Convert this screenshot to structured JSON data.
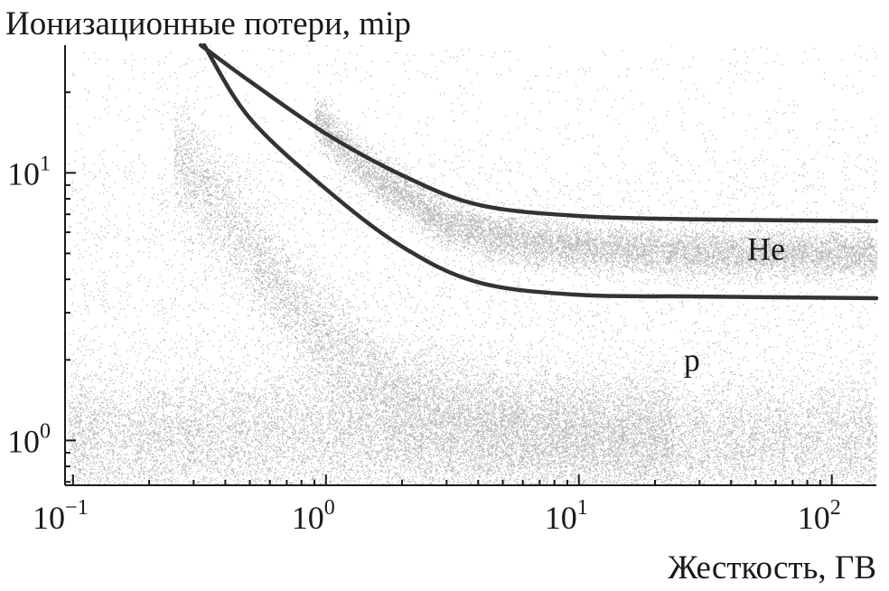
{
  "chart_data": {
    "type": "scatter",
    "title": "",
    "ylabel": "Ионизационные потери, mip",
    "xlabel": "Жесткость, ГВ",
    "x_scale": "log",
    "y_scale": "log",
    "xlim": [
      0.093,
      150
    ],
    "ylim": [
      0.68,
      30
    ],
    "grid": false,
    "x_ticks": [
      {
        "value": 0.1,
        "base": "10",
        "exp": "−1"
      },
      {
        "value": 1,
        "base": "10",
        "exp": "0"
      },
      {
        "value": 10,
        "base": "10",
        "exp": "1"
      },
      {
        "value": 100,
        "base": "10",
        "exp": "2"
      }
    ],
    "y_ticks": [
      {
        "value": 1,
        "base": "10",
        "exp": "0"
      },
      {
        "value": 10,
        "base": "10",
        "exp": "1"
      }
    ],
    "annotations": [
      {
        "text": "He",
        "x": 55,
        "y": 5.2
      },
      {
        "text": "p",
        "x": 28,
        "y": 2.0
      }
    ],
    "series": [
      {
        "role": "selection-boundary-upper",
        "points": [
          [
            0.32,
            30
          ],
          [
            0.5,
            22
          ],
          [
            1,
            14
          ],
          [
            2,
            9.8
          ],
          [
            4,
            7.6
          ],
          [
            10,
            6.9
          ],
          [
            30,
            6.7
          ],
          [
            150,
            6.6
          ]
        ]
      },
      {
        "role": "selection-boundary-lower",
        "points": [
          [
            0.33,
            30
          ],
          [
            0.5,
            16
          ],
          [
            1,
            8.7
          ],
          [
            2,
            5.3
          ],
          [
            4,
            3.9
          ],
          [
            10,
            3.5
          ],
          [
            30,
            3.45
          ],
          [
            150,
            3.4
          ]
        ]
      }
    ],
    "populations": [
      {
        "label": "p",
        "band": [
          [
            0.25,
            12
          ],
          [
            0.4,
            7
          ],
          [
            0.7,
            3.5
          ],
          [
            1.2,
            2.0
          ],
          [
            2,
            1.4
          ],
          [
            4,
            1.15
          ],
          [
            10,
            1.05
          ],
          [
            30,
            1.0
          ],
          [
            150,
            1.0
          ]
        ]
      },
      {
        "label": "He",
        "band": [
          [
            0.9,
            16
          ],
          [
            1.5,
            10
          ],
          [
            3,
            6.5
          ],
          [
            6,
            5.5
          ],
          [
            15,
            5.2
          ],
          [
            40,
            5.0
          ],
          [
            150,
            5.0
          ]
        ]
      }
    ],
    "point_color": "#7a7a7a"
  }
}
